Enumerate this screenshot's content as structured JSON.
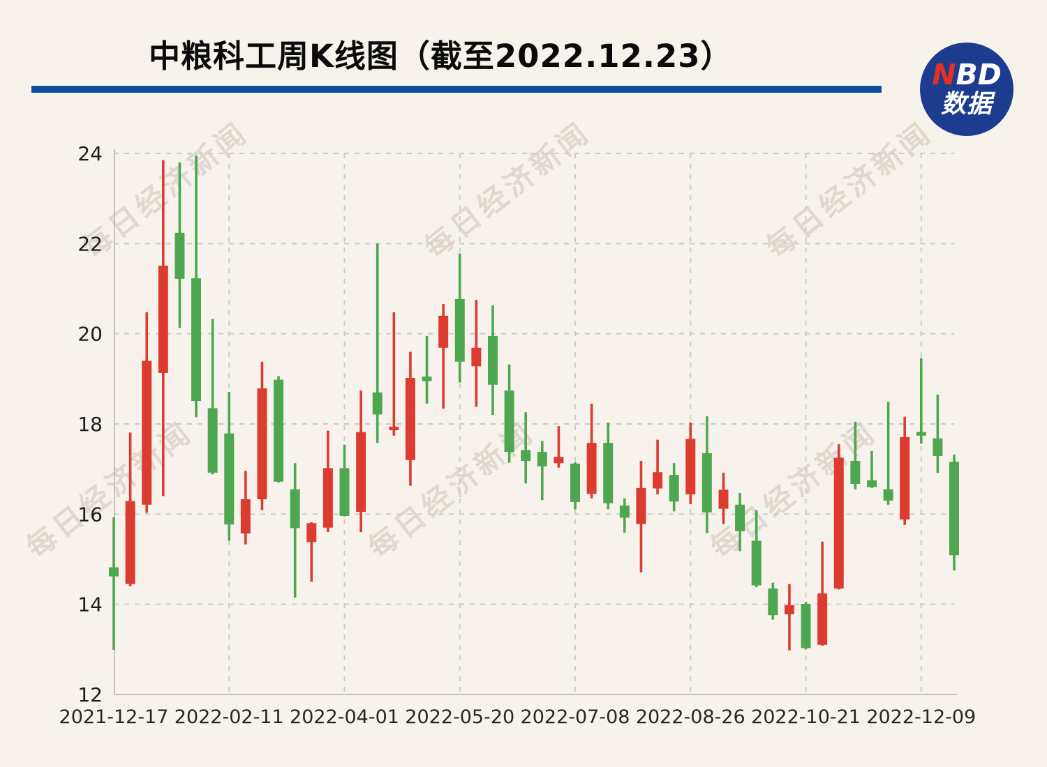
{
  "header": {
    "title": "中粮科工周K线图（截至2022.12.23）"
  },
  "logo": {
    "nbd_n": "N",
    "nbd_bd": "BD",
    "line2": "数据",
    "bg_color": "#1d3c8f",
    "n_color": "#e33122"
  },
  "watermark": {
    "text": "每日经济新闻"
  },
  "chart_data": {
    "type": "candlestick",
    "title": "中粮科工周K线图（截至2022.12.23）",
    "xlabel": "",
    "ylabel": "",
    "ylim": [
      12,
      24
    ],
    "yticks": [
      24,
      22,
      20,
      18,
      16,
      14,
      12
    ],
    "grid": "dashed",
    "legend_position": "none",
    "xtick_labels": [
      "2021-12-17",
      "2022-02-11",
      "2022-04-01",
      "2022-05-20",
      "2022-07-08",
      "2022-08-26",
      "2022-10-21",
      "2022-12-09"
    ],
    "xtick_candle_indices": [
      0,
      7,
      14,
      21,
      28,
      35,
      42,
      49
    ],
    "color_convention": {
      "up": "#dc3c30",
      "down": "#4ea750",
      "note": "Chinese convention: red body = close >= open (up week), green body = close < open (down week)"
    },
    "candles": [
      {
        "open": 14.82,
        "high": 15.93,
        "low": 12.99,
        "close": 14.62
      },
      {
        "open": 14.45,
        "high": 17.81,
        "low": 14.4,
        "close": 16.29
      },
      {
        "open": 16.21,
        "high": 20.48,
        "low": 16.03,
        "close": 19.4
      },
      {
        "open": 19.13,
        "high": 23.85,
        "low": 16.4,
        "close": 21.51
      },
      {
        "open": 22.24,
        "high": 23.8,
        "low": 20.13,
        "close": 21.22
      },
      {
        "open": 21.23,
        "high": 23.95,
        "low": 18.15,
        "close": 18.51
      },
      {
        "open": 18.35,
        "high": 20.33,
        "low": 16.88,
        "close": 16.92
      },
      {
        "open": 17.79,
        "high": 18.71,
        "low": 15.41,
        "close": 15.77
      },
      {
        "open": 15.57,
        "high": 16.96,
        "low": 15.33,
        "close": 16.33
      },
      {
        "open": 16.33,
        "high": 19.38,
        "low": 16.09,
        "close": 18.79
      },
      {
        "open": 18.98,
        "high": 19.06,
        "low": 16.7,
        "close": 16.72
      },
      {
        "open": 16.55,
        "high": 17.13,
        "low": 14.15,
        "close": 15.69
      },
      {
        "open": 15.38,
        "high": 15.82,
        "low": 14.5,
        "close": 15.8
      },
      {
        "open": 15.7,
        "high": 17.85,
        "low": 15.6,
        "close": 17.02
      },
      {
        "open": 17.02,
        "high": 17.54,
        "low": 15.95,
        "close": 15.96
      },
      {
        "open": 16.05,
        "high": 18.74,
        "low": 15.6,
        "close": 17.82
      },
      {
        "open": 18.7,
        "high": 22.0,
        "low": 17.58,
        "close": 18.21
      },
      {
        "open": 17.86,
        "high": 20.48,
        "low": 17.74,
        "close": 17.94
      },
      {
        "open": 17.2,
        "high": 19.6,
        "low": 16.63,
        "close": 19.02
      },
      {
        "open": 19.05,
        "high": 19.95,
        "low": 18.45,
        "close": 18.95
      },
      {
        "open": 19.69,
        "high": 20.66,
        "low": 18.34,
        "close": 20.4
      },
      {
        "open": 20.77,
        "high": 21.78,
        "low": 18.92,
        "close": 19.38
      },
      {
        "open": 19.28,
        "high": 20.75,
        "low": 18.38,
        "close": 19.69
      },
      {
        "open": 19.95,
        "high": 20.63,
        "low": 18.2,
        "close": 18.87
      },
      {
        "open": 18.74,
        "high": 19.32,
        "low": 17.14,
        "close": 17.38
      },
      {
        "open": 17.42,
        "high": 18.26,
        "low": 16.68,
        "close": 17.18
      },
      {
        "open": 17.38,
        "high": 17.62,
        "low": 16.31,
        "close": 17.06
      },
      {
        "open": 17.13,
        "high": 17.95,
        "low": 17.03,
        "close": 17.27
      },
      {
        "open": 17.12,
        "high": 17.15,
        "low": 16.11,
        "close": 16.27
      },
      {
        "open": 16.45,
        "high": 18.45,
        "low": 16.35,
        "close": 17.58
      },
      {
        "open": 17.58,
        "high": 18.03,
        "low": 16.11,
        "close": 16.24
      },
      {
        "open": 16.19,
        "high": 16.35,
        "low": 15.59,
        "close": 15.92
      },
      {
        "open": 15.78,
        "high": 17.18,
        "low": 14.71,
        "close": 16.58
      },
      {
        "open": 16.57,
        "high": 17.65,
        "low": 16.44,
        "close": 16.93
      },
      {
        "open": 16.87,
        "high": 17.13,
        "low": 16.06,
        "close": 16.28
      },
      {
        "open": 16.44,
        "high": 18.03,
        "low": 16.22,
        "close": 17.67
      },
      {
        "open": 17.35,
        "high": 18.17,
        "low": 15.58,
        "close": 16.04
      },
      {
        "open": 16.12,
        "high": 16.92,
        "low": 15.78,
        "close": 16.54
      },
      {
        "open": 16.21,
        "high": 16.47,
        "low": 15.18,
        "close": 15.62
      },
      {
        "open": 15.41,
        "high": 16.09,
        "low": 14.38,
        "close": 14.42
      },
      {
        "open": 14.35,
        "high": 14.48,
        "low": 13.66,
        "close": 13.76
      },
      {
        "open": 13.78,
        "high": 14.45,
        "low": 12.98,
        "close": 13.98
      },
      {
        "open": 14.01,
        "high": 14.05,
        "low": 13.0,
        "close": 13.03
      },
      {
        "open": 13.1,
        "high": 15.39,
        "low": 13.08,
        "close": 14.24
      },
      {
        "open": 14.35,
        "high": 17.55,
        "low": 14.33,
        "close": 17.25
      },
      {
        "open": 17.18,
        "high": 18.05,
        "low": 16.55,
        "close": 16.67
      },
      {
        "open": 16.75,
        "high": 17.4,
        "low": 16.58,
        "close": 16.6
      },
      {
        "open": 16.55,
        "high": 18.49,
        "low": 16.21,
        "close": 16.3
      },
      {
        "open": 15.88,
        "high": 18.16,
        "low": 15.76,
        "close": 17.71
      },
      {
        "open": 17.82,
        "high": 19.46,
        "low": 17.56,
        "close": 17.74
      },
      {
        "open": 17.68,
        "high": 18.65,
        "low": 16.91,
        "close": 17.29
      },
      {
        "open": 17.16,
        "high": 17.32,
        "low": 14.75,
        "close": 15.09
      }
    ]
  }
}
